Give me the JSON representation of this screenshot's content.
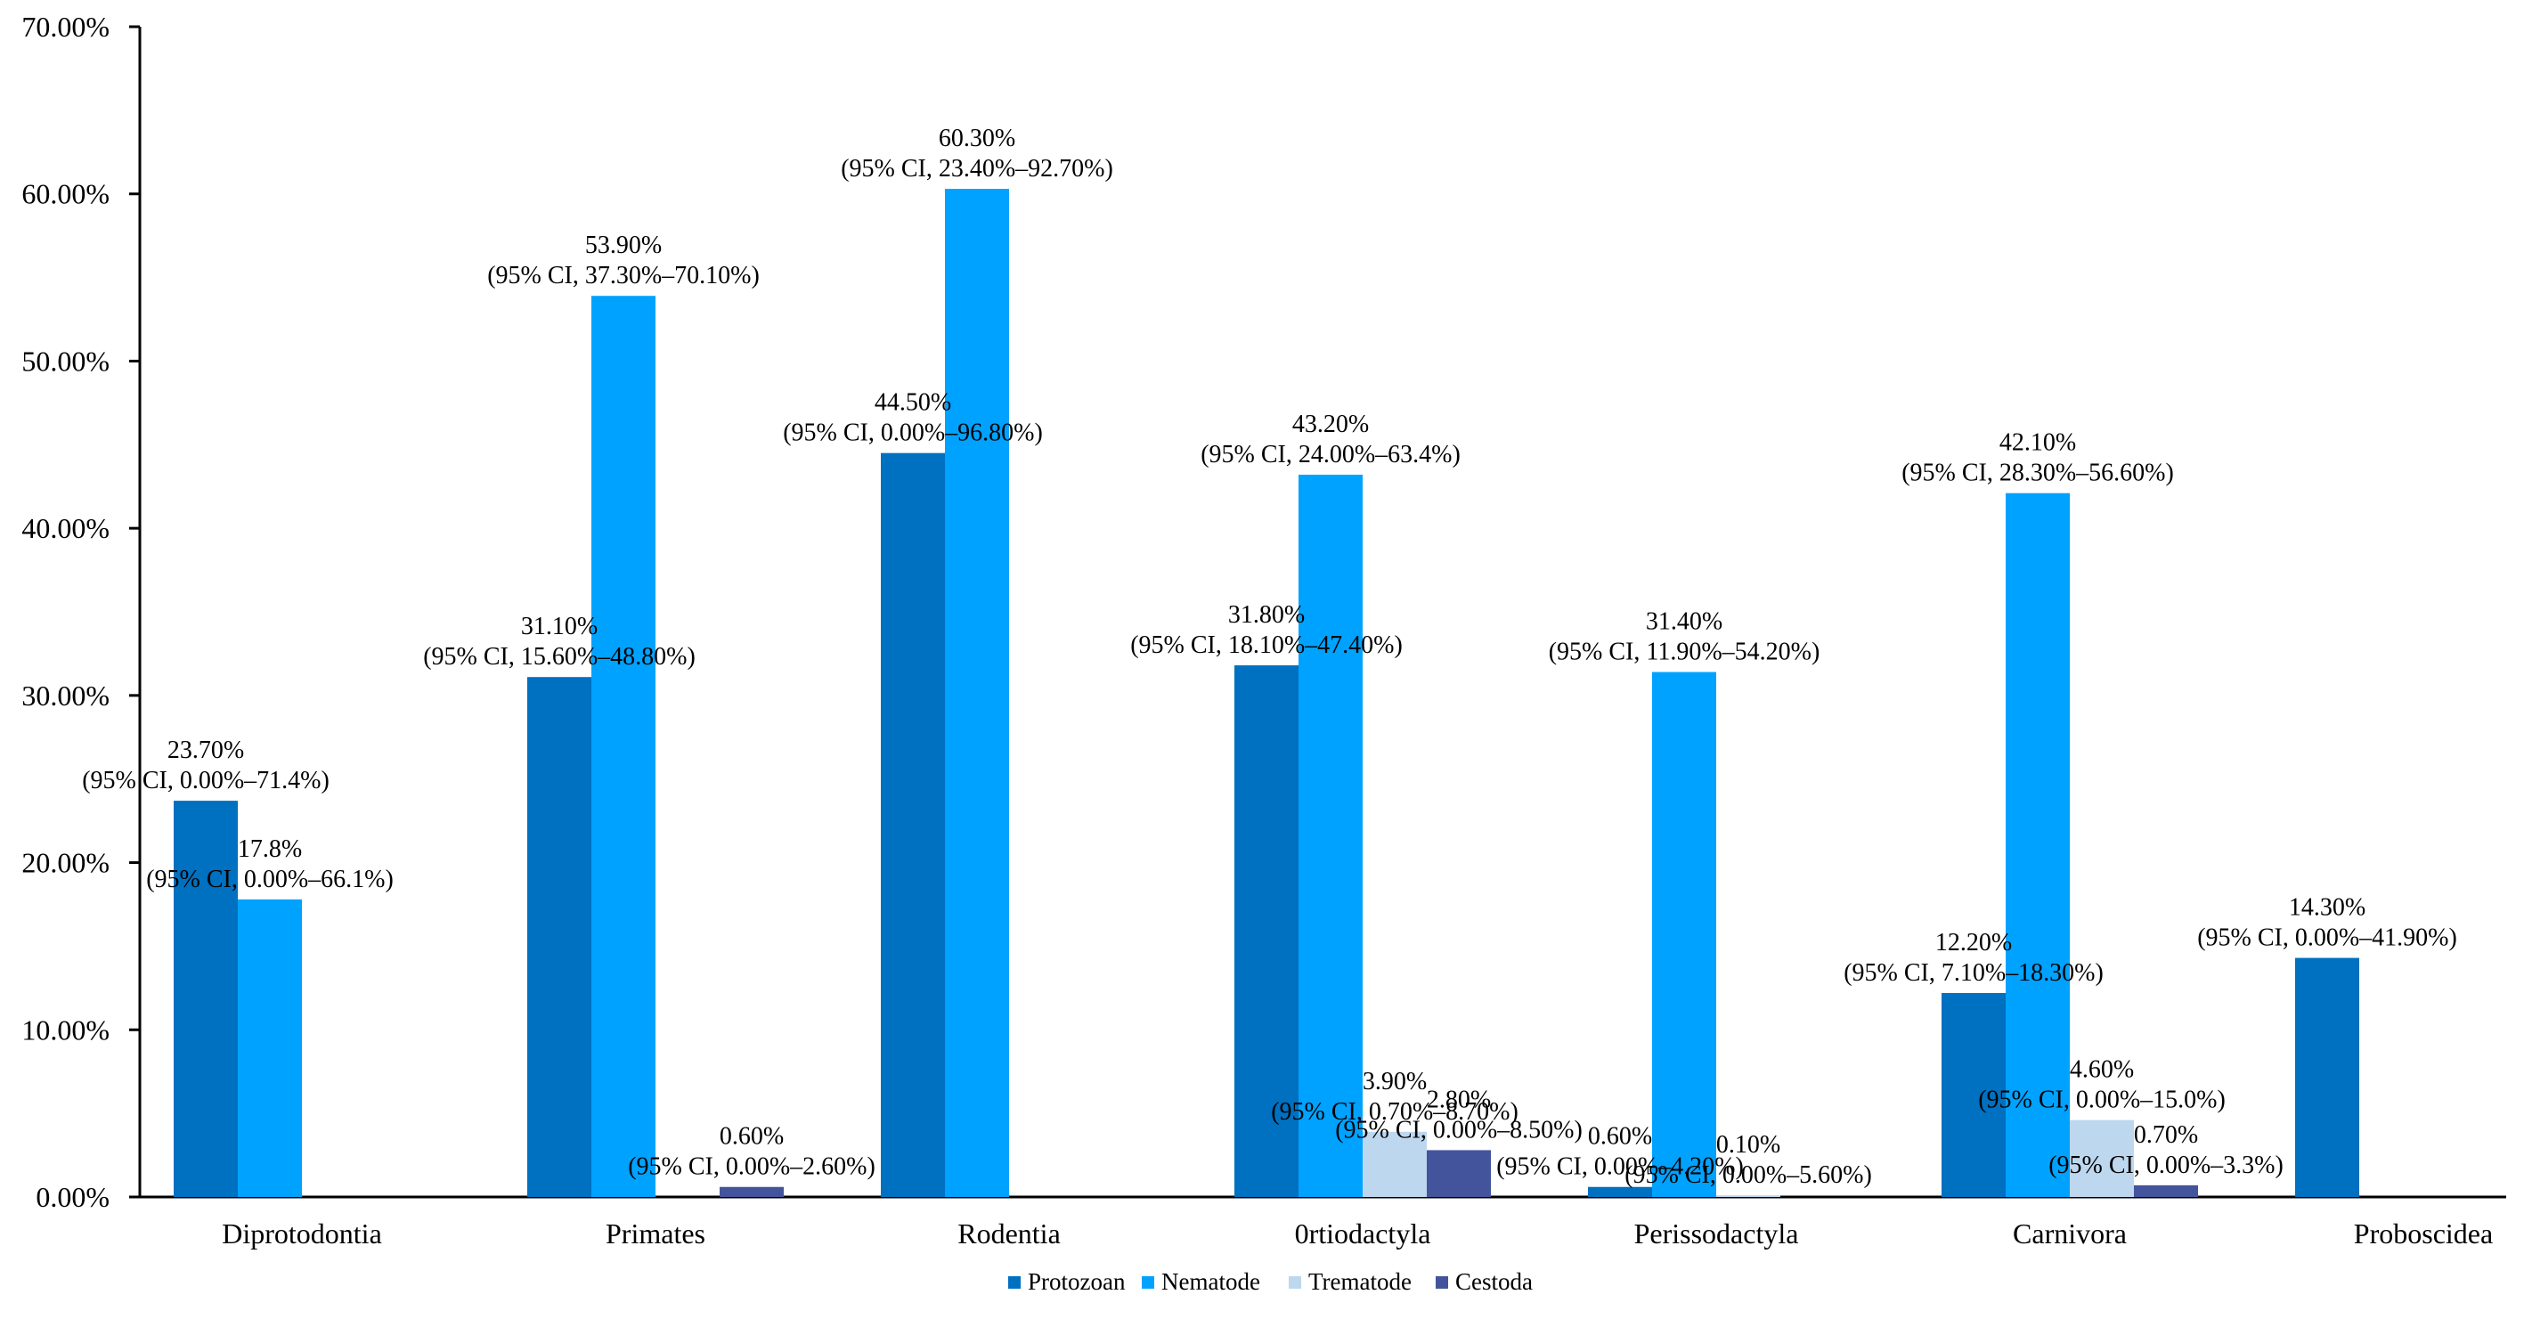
{
  "chart_data": {
    "type": "bar",
    "title": "",
    "xlabel": "",
    "ylabel": "",
    "ylim": [
      0,
      70
    ],
    "y_ticks": [
      "0.00%",
      "10.00%",
      "20.00%",
      "30.00%",
      "40.00%",
      "50.00%",
      "60.00%",
      "70.00%"
    ],
    "grid": false,
    "legend_position": "bottom-center",
    "categories": [
      "Diprotodontia",
      "Primates",
      "Rodentia",
      "0rtiodactyla",
      "Perissodactyla",
      "Carnivora",
      "Proboscidea"
    ],
    "series": [
      {
        "name": "Protozoan",
        "color": "#0070C0",
        "values": [
          23.7,
          31.1,
          44.5,
          31.8,
          0.6,
          12.2,
          14.3
        ],
        "labels": [
          "23.70%",
          "31.10%",
          "44.50%",
          "31.80%",
          "0.60%",
          "12.20%",
          "14.30%"
        ],
        "ci": [
          "(95% CI, 0.00%–71.4%)",
          "(95% CI, 15.60%–48.80%)",
          "(95% CI, 0.00%–96.80%)",
          "(95% CI, 18.10%–47.40%)",
          "(95% CI, 0.00%–4.20%)",
          "(95% CI, 7.10%–18.30%)",
          "(95% CI, 0.00%–41.90%)"
        ]
      },
      {
        "name": "Nematode",
        "color": "#00A2FF",
        "values": [
          17.8,
          53.9,
          60.3,
          43.2,
          31.4,
          42.1,
          null
        ],
        "labels": [
          "17.8%",
          "53.90%",
          "60.30%",
          "43.20%",
          "31.40%",
          "42.10%",
          null
        ],
        "ci": [
          "(95% CI, 0.00%–66.1%)",
          "(95% CI, 37.30%–70.10%)",
          "(95% CI, 23.40%–92.70%)",
          "(95% CI, 24.00%–63.4%)",
          "(95% CI, 11.90%–54.20%)",
          "(95% CI, 28.30%–56.60%)",
          null
        ]
      },
      {
        "name": "Trematode",
        "color": "#BDD7EE",
        "values": [
          null,
          null,
          null,
          3.9,
          0.1,
          4.6,
          null
        ],
        "labels": [
          null,
          null,
          null,
          "3.90%",
          "0.10%",
          "4.60%",
          null
        ],
        "ci": [
          null,
          null,
          null,
          "(95% CI, 0.70%–8.70%)",
          "(95% CI, 0.00%–5.60%)",
          "(95% CI, 0.00%–15.0%)",
          null
        ]
      },
      {
        "name": "Cestoda",
        "color": "#44549C",
        "values": [
          null,
          0.6,
          null,
          2.8,
          null,
          0.7,
          null
        ],
        "labels": [
          null,
          "0.60%",
          null,
          "2.80%",
          null,
          "0.70%",
          null
        ],
        "ci": [
          null,
          "(95% CI, 0.00%–2.60%)",
          null,
          "(95% CI, 0.00%–8.50%)",
          null,
          "(95% CI, 0.00%–3.3%)",
          null
        ]
      }
    ]
  }
}
